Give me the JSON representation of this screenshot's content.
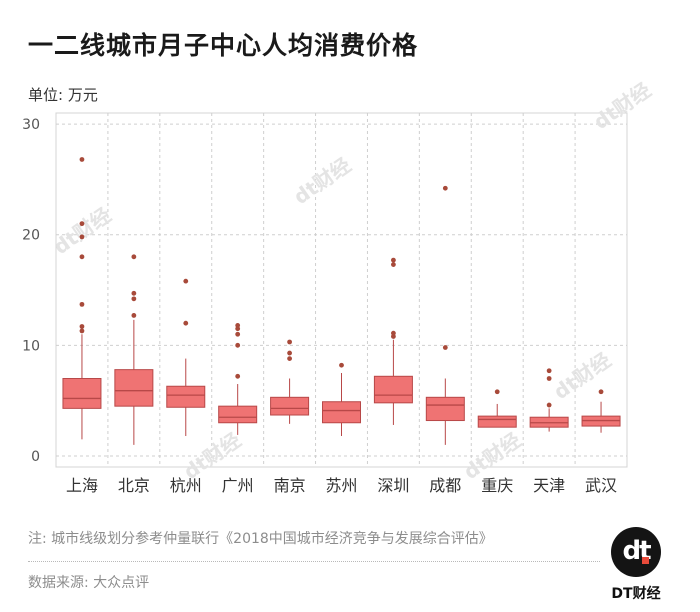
{
  "title": "一二线城市月子中心人均消费价格",
  "unit_label": "单位: 万元",
  "note": "注: 城市线级划分参考仲量联行《2018中国城市经济竞争与发展综合评估》",
  "source": "数据来源: 大众点评",
  "logo": {
    "glyph": "dt",
    "text": "DT财经"
  },
  "watermark": "dt财经",
  "colors": {
    "box_fill": "#ef7373",
    "box_stroke": "#b84848",
    "outlier": "#a84a3a",
    "grid": "#cfcfcf"
  },
  "chart_data": {
    "type": "boxplot",
    "ylim": [
      -1,
      31
    ],
    "yticks": [
      0,
      10,
      20,
      30
    ],
    "ylabel": "单位: 万元",
    "categories": [
      "上海",
      "北京",
      "杭州",
      "广州",
      "南京",
      "苏州",
      "深圳",
      "成都",
      "重庆",
      "天津",
      "武汉"
    ],
    "series": [
      {
        "name": "上海",
        "whisker_low": 1.5,
        "q1": 4.3,
        "median": 5.2,
        "q3": 7.0,
        "whisker_high": 11.0,
        "outliers": [
          11.3,
          11.7,
          13.7,
          18.0,
          19.8,
          21.0,
          26.8
        ]
      },
      {
        "name": "北京",
        "whisker_low": 1.0,
        "q1": 4.5,
        "median": 5.9,
        "q3": 7.8,
        "whisker_high": 12.3,
        "outliers": [
          12.7,
          14.2,
          14.7,
          18.0
        ]
      },
      {
        "name": "杭州",
        "whisker_low": 1.8,
        "q1": 4.4,
        "median": 5.5,
        "q3": 6.3,
        "whisker_high": 8.8,
        "outliers": [
          12.0,
          15.8
        ]
      },
      {
        "name": "广州",
        "whisker_low": 1.9,
        "q1": 3.0,
        "median": 3.5,
        "q3": 4.5,
        "whisker_high": 6.5,
        "outliers": [
          7.2,
          10.0,
          11.0,
          11.5,
          11.8
        ]
      },
      {
        "name": "南京",
        "whisker_low": 2.9,
        "q1": 3.7,
        "median": 4.3,
        "q3": 5.3,
        "whisker_high": 7.0,
        "outliers": [
          8.8,
          9.3,
          10.3
        ]
      },
      {
        "name": "苏州",
        "whisker_low": 1.8,
        "q1": 3.0,
        "median": 4.1,
        "q3": 4.9,
        "whisker_high": 7.5,
        "outliers": [
          8.2
        ]
      },
      {
        "name": "深圳",
        "whisker_low": 2.8,
        "q1": 4.8,
        "median": 5.5,
        "q3": 7.2,
        "whisker_high": 10.5,
        "outliers": [
          10.8,
          11.1,
          17.3,
          17.7
        ]
      },
      {
        "name": "成都",
        "whisker_low": 1.0,
        "q1": 3.2,
        "median": 4.6,
        "q3": 5.3,
        "whisker_high": 7.0,
        "outliers": [
          9.8,
          24.2
        ]
      },
      {
        "name": "重庆",
        "whisker_low": 2.6,
        "q1": 2.6,
        "median": 3.3,
        "q3": 3.6,
        "whisker_high": 4.7,
        "outliers": [
          5.8
        ]
      },
      {
        "name": "天津",
        "whisker_low": 2.2,
        "q1": 2.6,
        "median": 3.0,
        "q3": 3.5,
        "whisker_high": 4.3,
        "outliers": [
          4.6,
          7.0,
          7.7
        ]
      },
      {
        "name": "武汉",
        "whisker_low": 2.1,
        "q1": 2.7,
        "median": 3.2,
        "q3": 3.6,
        "whisker_high": 4.9,
        "outliers": [
          5.8
        ]
      }
    ]
  }
}
